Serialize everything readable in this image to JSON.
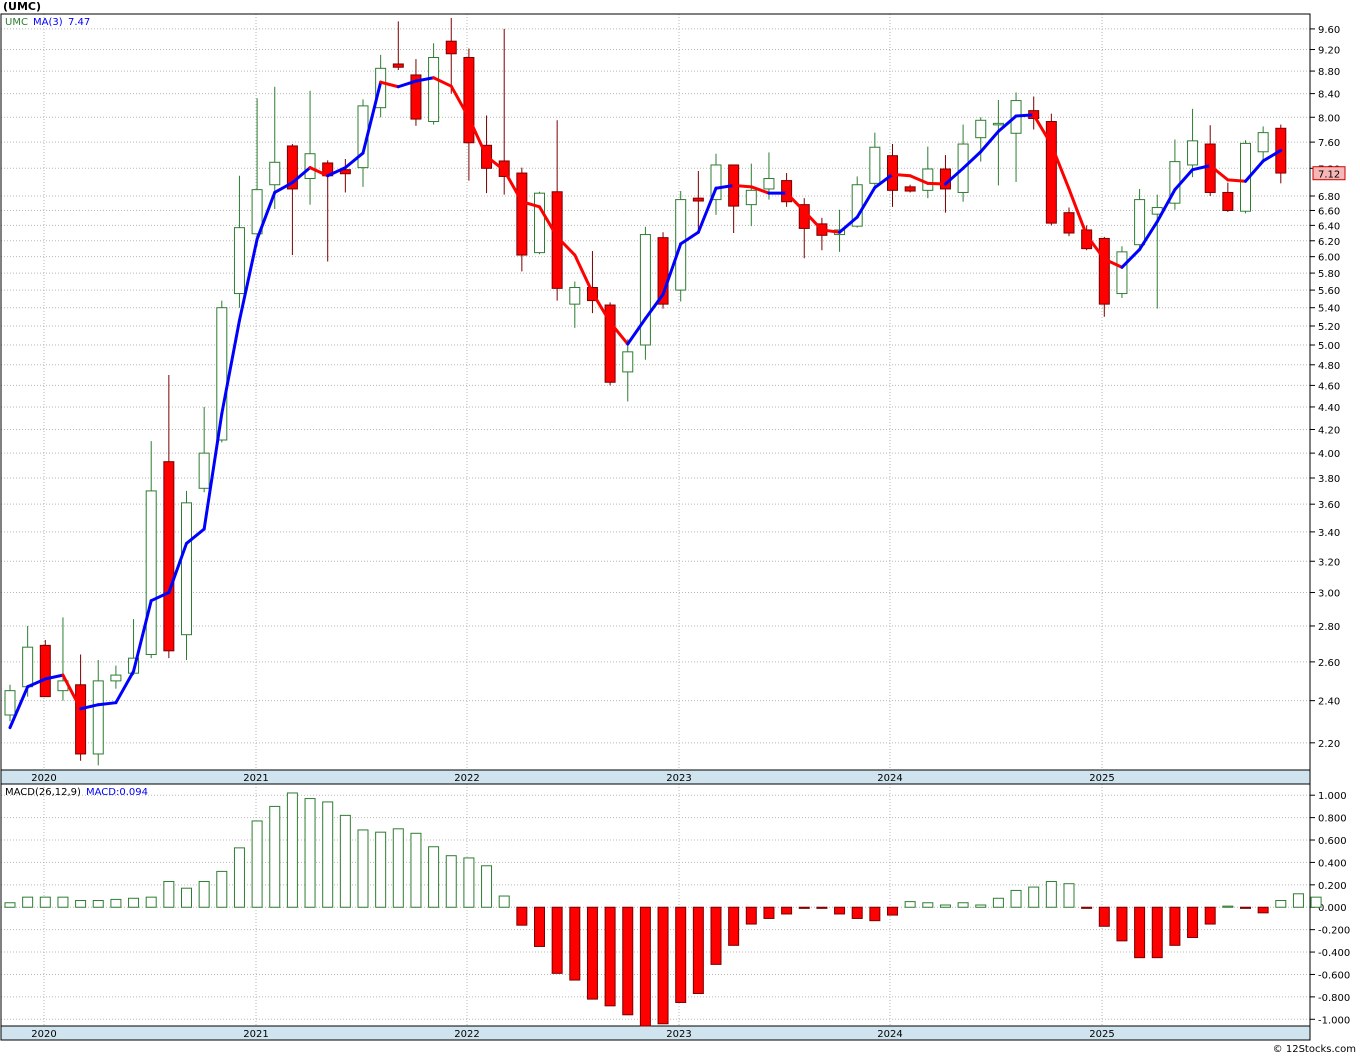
{
  "ticker_title": "(UMC)",
  "legend": {
    "symbol": "UMC",
    "ma_label": "MA(3)",
    "ma_value": "7.47"
  },
  "last_price": "7.12",
  "macd_legend": {
    "label": "MACD(26,12,9)",
    "value": "MACD:0.094"
  },
  "watermark": "© 12Stocks.com",
  "colors": {
    "up": "#2e7d32",
    "down": "#ff0000",
    "ma_up": "#0000ff",
    "ma_down": "#ff0000",
    "axis_band": "#cfe4ee",
    "grid": "#b7b7b7"
  },
  "chart_data": [
    {
      "type": "candlestick",
      "scale": "log",
      "ylim": [
        2.08,
        9.9
      ],
      "yticks": [
        "2.20",
        "2.40",
        "2.60",
        "2.80",
        "3.00",
        "3.20",
        "3.40",
        "3.60",
        "3.80",
        "4.00",
        "4.20",
        "4.40",
        "4.60",
        "4.80",
        "5.00",
        "5.20",
        "5.40",
        "5.60",
        "5.80",
        "6.00",
        "6.20",
        "6.40",
        "6.60",
        "6.80",
        "7.20",
        "7.60",
        "8.00",
        "8.40",
        "8.80",
        "9.20",
        "9.60"
      ],
      "xticks": [
        "2020",
        "2021",
        "2022",
        "2023",
        "2024",
        "2025"
      ],
      "ma_period": 3,
      "candles": [
        {
          "o": 2.33,
          "h": 2.48,
          "l": 2.3,
          "c": 2.45
        },
        {
          "o": 2.47,
          "h": 2.8,
          "l": 2.42,
          "c": 2.68
        },
        {
          "o": 2.69,
          "h": 2.72,
          "l": 2.42,
          "c": 2.42
        },
        {
          "o": 2.45,
          "h": 2.85,
          "l": 2.4,
          "c": 2.5
        },
        {
          "o": 2.48,
          "h": 2.64,
          "l": 2.12,
          "c": 2.15
        },
        {
          "o": 2.15,
          "h": 2.61,
          "l": 2.1,
          "c": 2.5
        },
        {
          "o": 2.5,
          "h": 2.58,
          "l": 2.46,
          "c": 2.53
        },
        {
          "o": 2.54,
          "h": 2.84,
          "l": 2.53,
          "c": 2.62
        },
        {
          "o": 2.64,
          "h": 4.1,
          "l": 2.62,
          "c": 3.7
        },
        {
          "o": 3.93,
          "h": 4.7,
          "l": 2.62,
          "c": 2.66
        },
        {
          "o": 2.75,
          "h": 3.7,
          "l": 2.61,
          "c": 3.61
        },
        {
          "o": 3.72,
          "h": 4.4,
          "l": 3.69,
          "c": 4.0
        },
        {
          "o": 4.11,
          "h": 5.48,
          "l": 4.09,
          "c": 5.4
        },
        {
          "o": 5.56,
          "h": 7.09,
          "l": 5.4,
          "c": 6.37
        },
        {
          "o": 6.29,
          "h": 8.32,
          "l": 6.13,
          "c": 6.89
        },
        {
          "o": 6.96,
          "h": 8.52,
          "l": 6.62,
          "c": 7.29
        },
        {
          "o": 7.54,
          "h": 7.57,
          "l": 6.02,
          "c": 6.9
        },
        {
          "o": 7.05,
          "h": 8.45,
          "l": 6.68,
          "c": 7.42
        },
        {
          "o": 7.28,
          "h": 7.32,
          "l": 5.94,
          "c": 7.09
        },
        {
          "o": 7.18,
          "h": 7.34,
          "l": 6.85,
          "c": 7.12
        },
        {
          "o": 7.21,
          "h": 8.3,
          "l": 6.93,
          "c": 8.19
        },
        {
          "o": 8.16,
          "h": 9.1,
          "l": 8.0,
          "c": 8.85
        },
        {
          "o": 8.93,
          "h": 9.75,
          "l": 8.82,
          "c": 8.87
        },
        {
          "o": 8.73,
          "h": 9.02,
          "l": 7.86,
          "c": 7.97
        },
        {
          "o": 7.93,
          "h": 9.32,
          "l": 7.88,
          "c": 9.05
        },
        {
          "o": 9.36,
          "h": 9.82,
          "l": 8.4,
          "c": 9.12
        },
        {
          "o": 9.05,
          "h": 9.22,
          "l": 7.02,
          "c": 7.59
        },
        {
          "o": 7.55,
          "h": 8.03,
          "l": 6.84,
          "c": 7.2
        },
        {
          "o": 7.31,
          "h": 9.6,
          "l": 6.82,
          "c": 7.08
        },
        {
          "o": 7.13,
          "h": 7.21,
          "l": 5.82,
          "c": 6.02
        },
        {
          "o": 6.05,
          "h": 6.86,
          "l": 6.03,
          "c": 6.84
        },
        {
          "o": 6.86,
          "h": 7.95,
          "l": 5.48,
          "c": 5.62
        },
        {
          "o": 5.44,
          "h": 5.7,
          "l": 5.18,
          "c": 5.63
        },
        {
          "o": 5.63,
          "h": 6.07,
          "l": 5.34,
          "c": 5.48
        },
        {
          "o": 5.43,
          "h": 5.46,
          "l": 4.6,
          "c": 4.63
        },
        {
          "o": 4.73,
          "h": 5.06,
          "l": 4.45,
          "c": 4.93
        },
        {
          "o": 5.0,
          "h": 6.38,
          "l": 4.85,
          "c": 6.28
        },
        {
          "o": 6.24,
          "h": 6.31,
          "l": 5.39,
          "c": 5.44
        },
        {
          "o": 5.6,
          "h": 6.87,
          "l": 5.47,
          "c": 6.75
        },
        {
          "o": 6.77,
          "h": 7.16,
          "l": 6.34,
          "c": 6.73
        },
        {
          "o": 6.75,
          "h": 7.42,
          "l": 6.54,
          "c": 7.25
        },
        {
          "o": 7.25,
          "h": 7.25,
          "l": 6.3,
          "c": 6.66
        },
        {
          "o": 6.68,
          "h": 7.27,
          "l": 6.39,
          "c": 6.88
        },
        {
          "o": 6.9,
          "h": 7.44,
          "l": 6.75,
          "c": 7.05
        },
        {
          "o": 7.02,
          "h": 7.13,
          "l": 6.65,
          "c": 6.72
        },
        {
          "o": 6.68,
          "h": 6.77,
          "l": 5.98,
          "c": 6.36
        },
        {
          "o": 6.42,
          "h": 6.5,
          "l": 6.08,
          "c": 6.27
        },
        {
          "o": 6.28,
          "h": 6.61,
          "l": 6.06,
          "c": 6.34
        },
        {
          "o": 6.39,
          "h": 7.08,
          "l": 6.37,
          "c": 6.96
        },
        {
          "o": 6.98,
          "h": 7.75,
          "l": 6.9,
          "c": 7.52
        },
        {
          "o": 7.39,
          "h": 7.57,
          "l": 6.65,
          "c": 6.88
        },
        {
          "o": 6.93,
          "h": 6.96,
          "l": 6.85,
          "c": 6.87
        },
        {
          "o": 6.88,
          "h": 7.53,
          "l": 6.77,
          "c": 7.19
        },
        {
          "o": 7.19,
          "h": 7.4,
          "l": 6.57,
          "c": 6.9
        },
        {
          "o": 6.85,
          "h": 7.88,
          "l": 6.72,
          "c": 7.57
        },
        {
          "o": 7.67,
          "h": 8.0,
          "l": 7.3,
          "c": 7.95
        },
        {
          "o": 7.89,
          "h": 8.29,
          "l": 6.95,
          "c": 7.9
        },
        {
          "o": 7.74,
          "h": 8.42,
          "l": 7.0,
          "c": 8.28
        },
        {
          "o": 8.11,
          "h": 8.35,
          "l": 7.8,
          "c": 7.98
        },
        {
          "o": 7.93,
          "h": 8.06,
          "l": 6.4,
          "c": 6.43
        },
        {
          "o": 6.57,
          "h": 6.64,
          "l": 6.26,
          "c": 6.3
        },
        {
          "o": 6.34,
          "h": 6.4,
          "l": 6.08,
          "c": 6.1
        },
        {
          "o": 6.23,
          "h": 6.25,
          "l": 5.3,
          "c": 5.44
        },
        {
          "o": 5.56,
          "h": 6.13,
          "l": 5.51,
          "c": 6.06
        },
        {
          "o": 6.15,
          "h": 6.9,
          "l": 6.08,
          "c": 6.75
        },
        {
          "o": 6.55,
          "h": 6.82,
          "l": 5.39,
          "c": 6.64
        },
        {
          "o": 6.7,
          "h": 7.64,
          "l": 6.61,
          "c": 7.3
        },
        {
          "o": 7.25,
          "h": 8.14,
          "l": 7.07,
          "c": 7.62
        },
        {
          "o": 7.57,
          "h": 7.87,
          "l": 6.8,
          "c": 6.85
        },
        {
          "o": 6.85,
          "h": 6.99,
          "l": 6.58,
          "c": 6.6
        },
        {
          "o": 6.59,
          "h": 7.63,
          "l": 6.56,
          "c": 7.58
        },
        {
          "o": 7.45,
          "h": 7.85,
          "l": 7.28,
          "c": 7.75
        },
        {
          "o": 7.82,
          "h": 7.88,
          "l": 6.98,
          "c": 7.13
        }
      ],
      "ma_values": [
        2.27,
        2.47,
        2.51,
        2.53,
        2.36,
        2.38,
        2.39,
        2.55,
        2.95,
        3.0,
        3.32,
        3.42,
        4.34,
        5.26,
        6.22,
        6.85,
        6.99,
        7.21,
        7.09,
        7.21,
        7.43,
        8.6,
        8.52,
        8.62,
        8.68,
        8.53,
        7.99,
        7.38,
        7.17,
        6.72,
        6.65,
        6.25,
        6.02,
        5.57,
        5.24,
        5.01,
        5.28,
        5.55,
        6.16,
        6.31,
        6.91,
        6.95,
        6.93,
        6.84,
        6.84,
        6.59,
        6.34,
        6.31,
        6.51,
        6.92,
        7.11,
        7.09,
        6.98,
        6.97,
        7.2,
        7.45,
        7.77,
        8.02,
        8.04,
        7.56,
        6.9,
        6.27,
        5.97,
        5.87,
        6.09,
        6.45,
        6.89,
        7.18,
        7.24,
        7.03,
        7.01,
        7.31,
        7.47
      ]
    },
    {
      "type": "bar",
      "title": "MACD(26,12,9)",
      "ylim": [
        -1.06,
        1.1
      ],
      "yticks": [
        "1.000",
        "0.800",
        "0.600",
        "0.400",
        "0.200",
        "0.000",
        "-0.200",
        "-0.400",
        "-0.600",
        "-0.800",
        "-1.000"
      ],
      "xticks": [
        "2020",
        "2021",
        "2022",
        "2023",
        "2024",
        "2025"
      ],
      "values": [
        0.04,
        0.09,
        0.09,
        0.09,
        0.06,
        0.06,
        0.07,
        0.08,
        0.09,
        0.23,
        0.17,
        0.23,
        0.32,
        0.53,
        0.77,
        0.9,
        1.02,
        0.97,
        0.94,
        0.82,
        0.69,
        0.67,
        0.7,
        0.66,
        0.54,
        0.46,
        0.44,
        0.37,
        0.1,
        -0.16,
        -0.35,
        -0.59,
        -0.65,
        -0.82,
        -0.88,
        -0.96,
        -1.06,
        -1.04,
        -0.85,
        -0.77,
        -0.51,
        -0.34,
        -0.15,
        -0.1,
        -0.06,
        -0.01,
        -0.01,
        -0.06,
        -0.1,
        -0.12,
        -0.07,
        0.05,
        0.04,
        0.02,
        0.04,
        0.02,
        0.08,
        0.15,
        0.18,
        0.23,
        0.21,
        -0.01,
        -0.17,
        -0.3,
        -0.45,
        -0.45,
        -0.34,
        -0.27,
        -0.15,
        0.01,
        -0.01,
        -0.05,
        0.06,
        0.12,
        0.09
      ]
    }
  ]
}
